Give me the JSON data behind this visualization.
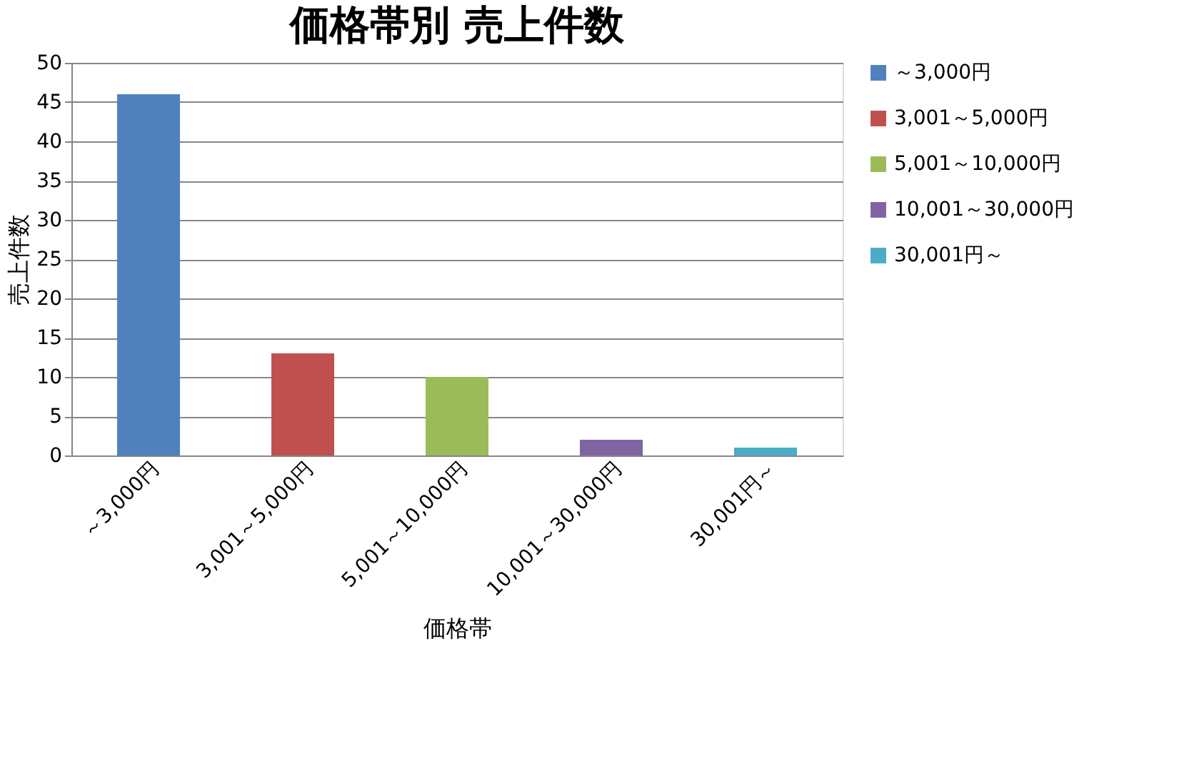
{
  "chart_data": {
    "type": "bar",
    "title": "価格帯別 売上件数",
    "xlabel": "価格帯",
    "ylabel": "売上件数",
    "categories": [
      "～3,000円",
      "3,001～5,000円",
      "5,001～10,000円",
      "10,001～30,000円",
      "30,001円～"
    ],
    "series": [
      {
        "name": "～3,000円",
        "color": "#4f81bd",
        "values": [
          46,
          null,
          null,
          null,
          null
        ]
      },
      {
        "name": "3,001～5,000円",
        "color": "#c0504d",
        "values": [
          null,
          13,
          null,
          null,
          null
        ]
      },
      {
        "name": "5,001～10,000円",
        "color": "#9bbb59",
        "values": [
          null,
          null,
          10,
          null,
          null
        ]
      },
      {
        "name": "10,001～30,000円",
        "color": "#8064a2",
        "values": [
          null,
          null,
          null,
          2,
          null
        ]
      },
      {
        "name": "30,001円～",
        "color": "#4bacc6",
        "values": [
          null,
          null,
          null,
          null,
          1
        ]
      }
    ],
    "ylim": [
      0,
      50
    ],
    "yticks": [
      0,
      5,
      10,
      15,
      20,
      25,
      30,
      35,
      40,
      45,
      50
    ],
    "grid": "y",
    "legend": "right"
  }
}
